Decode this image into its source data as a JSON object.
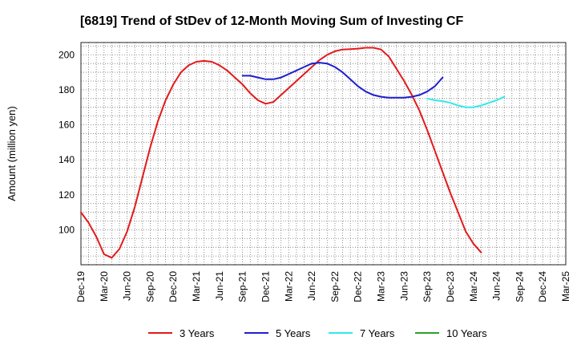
{
  "chart_data": {
    "type": "line",
    "title": "[6819]  Trend of StDev of 12-Month Moving Sum of Investing CF",
    "xlabel": "",
    "ylabel": "Amount (million yen)",
    "ylim": [
      80,
      207
    ],
    "yticks": [
      100,
      120,
      140,
      160,
      180,
      200
    ],
    "x_ticks": [
      "Dec-19",
      "Mar-20",
      "Jun-20",
      "Sep-20",
      "Dec-20",
      "Mar-21",
      "Jun-21",
      "Sep-21",
      "Dec-21",
      "Mar-22",
      "Jun-22",
      "Sep-22",
      "Dec-22",
      "Mar-23",
      "Jun-23",
      "Sep-23",
      "Dec-23",
      "Mar-24",
      "Jun-24",
      "Sep-24",
      "Dec-24",
      "Mar-25"
    ],
    "months_per_tick": 3,
    "grid": true,
    "legend_position": "bottom",
    "series": [
      {
        "name": "3 Years",
        "color": "#e31a1c",
        "start_tick": "Dec-19",
        "values": [
          110,
          104,
          96,
          86,
          84,
          89,
          99,
          113,
          130,
          147,
          162,
          174,
          183,
          190,
          194,
          196,
          196.5,
          196,
          194,
          191,
          187,
          183,
          178,
          174,
          172,
          173,
          177,
          181,
          185,
          189,
          193,
          197,
          200,
          202,
          203,
          203.2,
          203.5,
          204,
          204,
          203,
          199,
          192,
          185,
          177,
          168,
          157,
          145,
          133,
          121,
          110,
          99,
          92,
          87
        ]
      },
      {
        "name": "5 Years",
        "color": "#1f1fcf",
        "start_tick": "Sep-21",
        "values": [
          188,
          188,
          187,
          186,
          186,
          187,
          189,
          191,
          193,
          195,
          195.5,
          195,
          193,
          190,
          186,
          182,
          179,
          177,
          176,
          175.5,
          175.5,
          175.5,
          176,
          177,
          179,
          182,
          187
        ]
      },
      {
        "name": "7 Years",
        "color": "#33e8e8",
        "start_tick": "Sep-23",
        "values": [
          175,
          174,
          173.5,
          172.5,
          171,
          170,
          170,
          171,
          172.5,
          174,
          176
        ]
      },
      {
        "name": "10 Years",
        "color": "#2ca02c",
        "start_tick": "",
        "values": []
      }
    ]
  }
}
